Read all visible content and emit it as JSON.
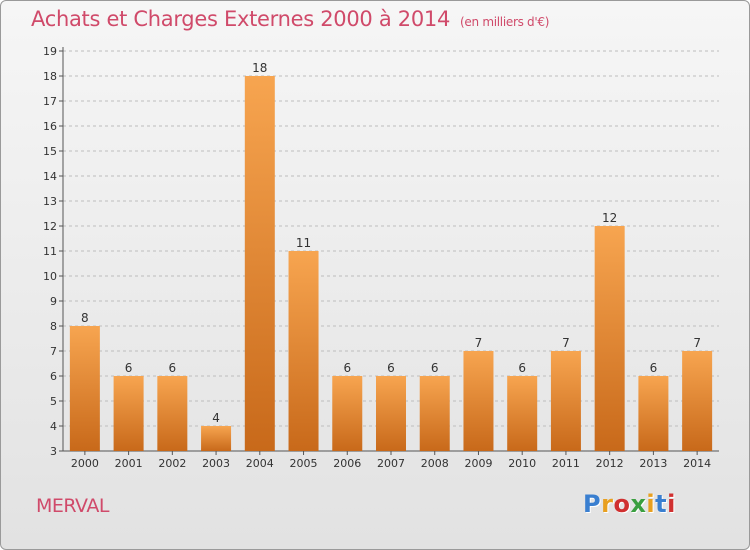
{
  "header": {
    "title": "Achats et Charges Externes 2000 à 2014",
    "unit": "(en milliers d'€)"
  },
  "footer": {
    "place": "MERVAL",
    "logo": "Proxiti",
    "logo_colors": [
      "#3a7fd0",
      "#e8a020",
      "#d03030",
      "#3a9f40",
      "#e8a020",
      "#3a7fd0",
      "#d03030"
    ]
  },
  "colors": {
    "title": "#d04a6a",
    "bar_light": "#f7a550",
    "bar_dark": "#c8691a",
    "axis": "#555555",
    "grid": "#bdbdbd"
  },
  "chart_data": {
    "type": "bar",
    "title": "Achats et Charges Externes 2000 à 2014",
    "subtitle": "(en milliers d'€)",
    "xlabel": "",
    "ylabel": "",
    "categories": [
      "2000",
      "2001",
      "2002",
      "2003",
      "2004",
      "2005",
      "2006",
      "2007",
      "2008",
      "2009",
      "2010",
      "2011",
      "2012",
      "2013",
      "2014"
    ],
    "values": [
      8,
      6,
      6,
      4,
      18,
      11,
      6,
      6,
      6,
      7,
      6,
      7,
      12,
      6,
      7
    ],
    "ylim": [
      3,
      19
    ],
    "yticks": [
      3,
      4,
      5,
      6,
      7,
      8,
      9,
      10,
      11,
      12,
      13,
      14,
      15,
      16,
      17,
      18,
      19
    ],
    "grid": true,
    "legend": "none"
  }
}
